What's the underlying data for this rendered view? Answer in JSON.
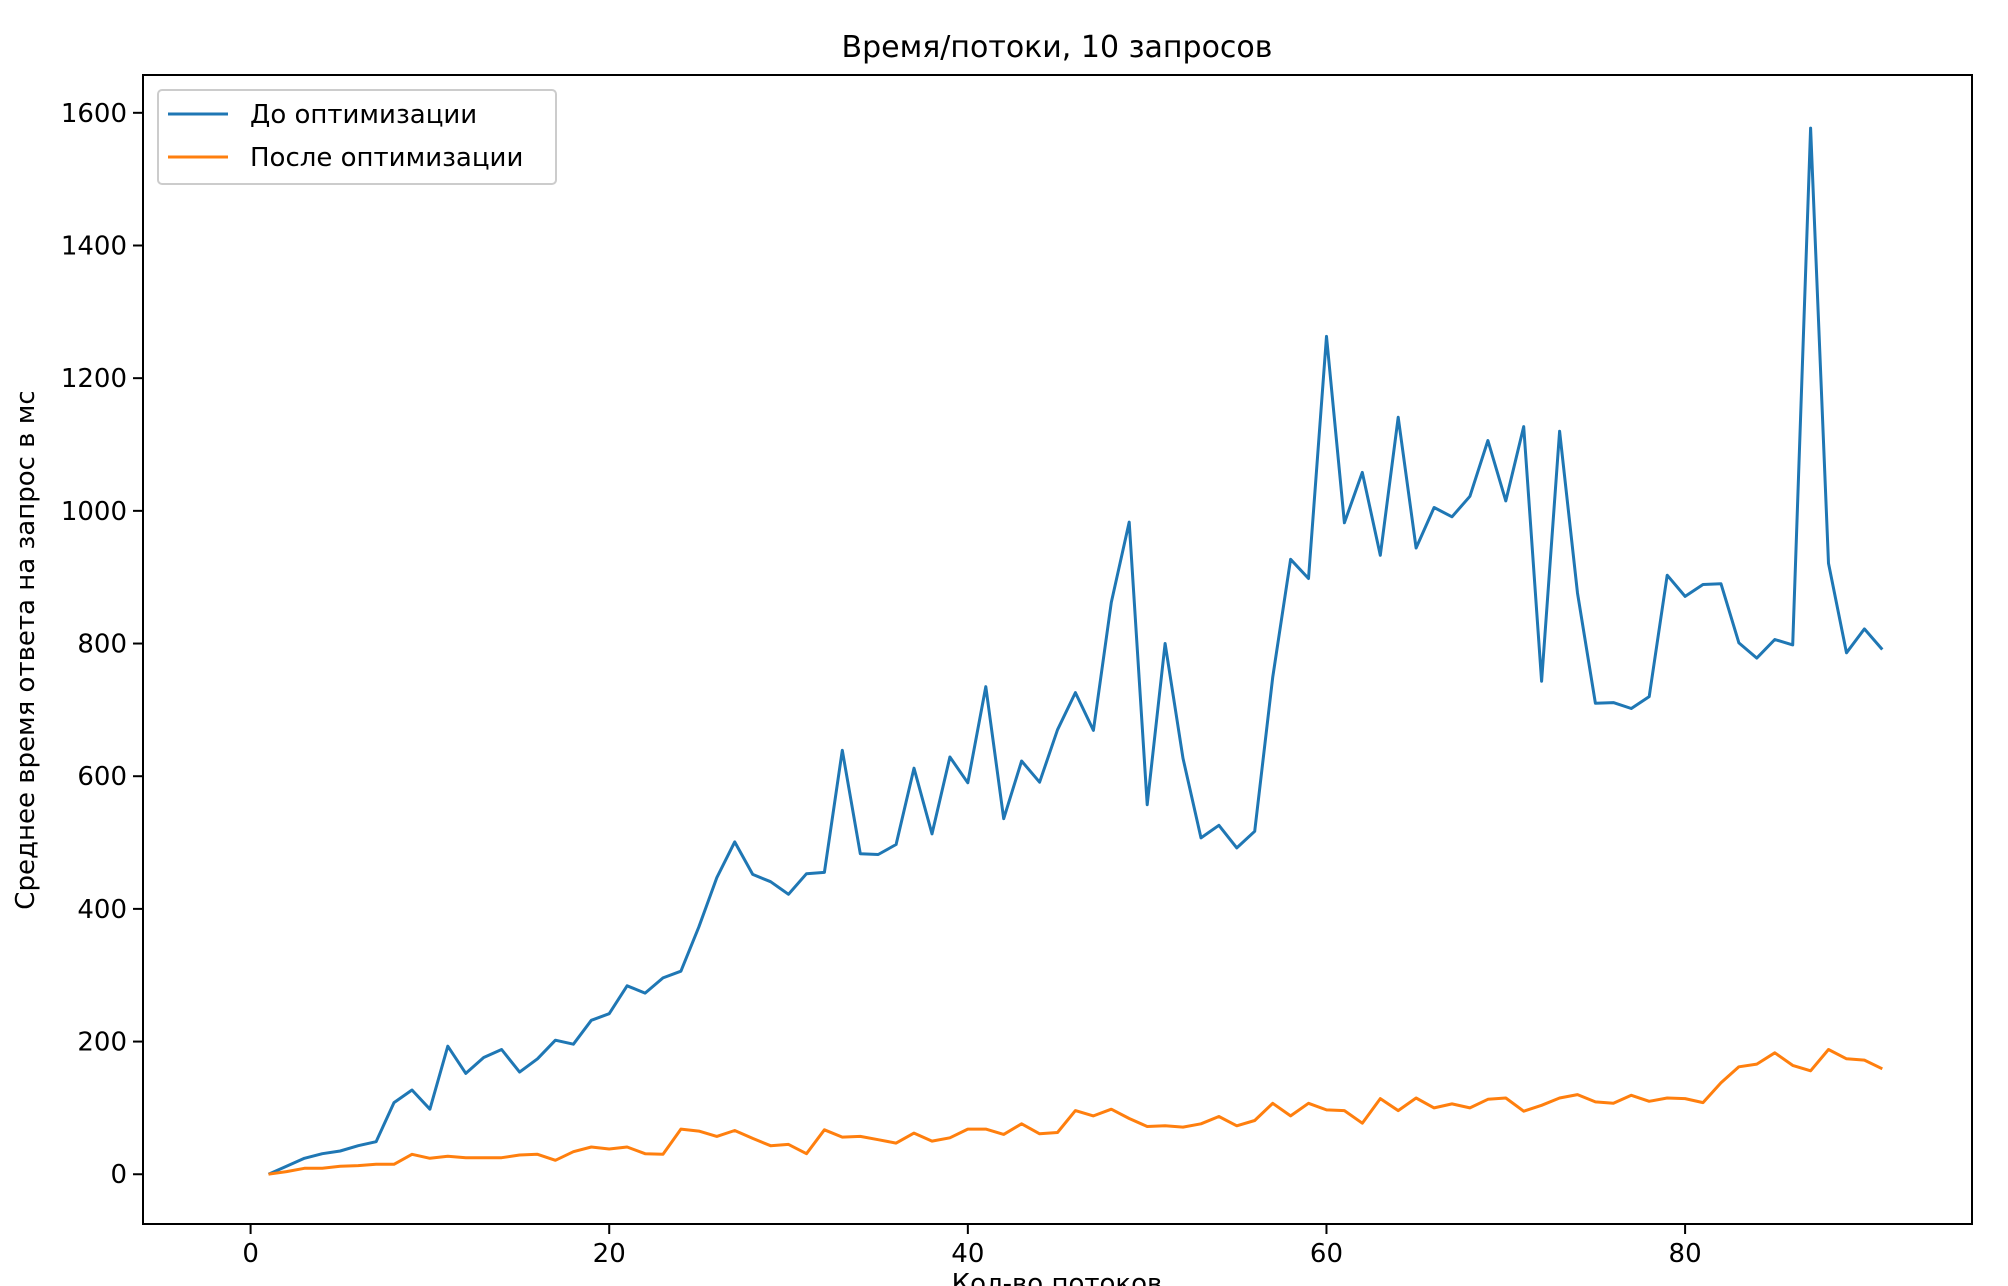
{
  "chart_data": {
    "type": "line",
    "title": "Время/потоки, 10 запросов",
    "xlabel": "Кол-во потоков",
    "ylabel": "Среднее время ответа на запрос в мс",
    "xlim": [
      -6,
      96
    ],
    "ylim": [
      -75,
      1657
    ],
    "xticks": [
      0,
      20,
      40,
      60,
      80
    ],
    "yticks": [
      0,
      200,
      400,
      600,
      800,
      1000,
      1200,
      1400,
      1600
    ],
    "grid": false,
    "legend_position": "top-left",
    "series": [
      {
        "name": "До оптимизации",
        "color": "#1f77b4",
        "x": [
          1,
          2,
          3,
          4,
          5,
          6,
          7,
          8,
          9,
          10,
          11,
          12,
          13,
          14,
          15,
          16,
          17,
          18,
          19,
          20,
          21,
          22,
          23,
          24,
          25,
          26,
          27,
          28,
          29,
          30,
          31,
          32,
          33,
          34,
          35,
          36,
          37,
          38,
          39,
          40,
          41,
          42,
          43,
          44,
          45,
          46,
          47,
          48,
          49,
          50,
          51,
          52,
          53,
          54,
          55,
          56,
          57,
          58,
          59,
          60,
          61,
          62,
          63,
          64,
          65,
          66,
          67,
          68,
          69,
          70,
          71,
          72,
          73,
          74,
          75,
          76,
          77,
          78,
          79,
          80,
          81,
          82,
          83,
          84,
          85,
          86,
          87,
          88,
          89,
          90,
          91
        ],
        "values": [
          0,
          12,
          24,
          31,
          35,
          43,
          49,
          108,
          127,
          98,
          193,
          152,
          176,
          188,
          154,
          174,
          202,
          196,
          232,
          242,
          284,
          273,
          296,
          306,
          373,
          447,
          501,
          452,
          441,
          422,
          453,
          455,
          639,
          483,
          482,
          497,
          612,
          513,
          629,
          590,
          735,
          536,
          623,
          591,
          670,
          726,
          669,
          862,
          983,
          557,
          800,
          627,
          507,
          526,
          492,
          517,
          749,
          927,
          898,
          1263,
          982,
          1058,
          933,
          1141,
          944,
          1005,
          991,
          1022,
          1106,
          1015,
          1127,
          743,
          1120,
          876,
          710,
          711,
          702,
          720,
          903,
          871,
          889,
          890,
          801,
          778,
          806,
          798,
          1577,
          921,
          786,
          822,
          791
        ]
      },
      {
        "name": "После оптимизации",
        "color": "#ff7f0e",
        "x": [
          1,
          2,
          3,
          4,
          5,
          6,
          7,
          8,
          9,
          10,
          11,
          12,
          13,
          14,
          15,
          16,
          17,
          18,
          19,
          20,
          21,
          22,
          23,
          24,
          25,
          26,
          27,
          28,
          29,
          30,
          31,
          32,
          33,
          34,
          35,
          36,
          37,
          38,
          39,
          40,
          41,
          42,
          43,
          44,
          45,
          46,
          47,
          48,
          49,
          50,
          51,
          52,
          53,
          54,
          55,
          56,
          57,
          58,
          59,
          60,
          61,
          62,
          63,
          64,
          65,
          66,
          67,
          68,
          69,
          70,
          71,
          72,
          73,
          74,
          75,
          76,
          77,
          78,
          79,
          80,
          81,
          82,
          83,
          84,
          85,
          86,
          87,
          88,
          89,
          90,
          91
        ],
        "values": [
          0,
          4,
          9,
          9,
          12,
          13,
          15,
          15,
          30,
          24,
          27,
          25,
          25,
          25,
          29,
          30,
          21,
          34,
          41,
          38,
          41,
          31,
          30,
          68,
          65,
          57,
          66,
          54,
          43,
          45,
          31,
          67,
          56,
          57,
          52,
          47,
          62,
          50,
          55,
          68,
          68,
          60,
          76,
          61,
          63,
          96,
          88,
          98,
          84,
          72,
          73,
          71,
          76,
          87,
          73,
          81,
          107,
          88,
          107,
          97,
          96,
          77,
          114,
          96,
          115,
          100,
          106,
          100,
          113,
          115,
          95,
          104,
          115,
          120,
          109,
          107,
          119,
          110,
          115,
          114,
          108,
          138,
          162,
          166,
          183,
          164,
          156,
          188,
          174,
          172,
          159
        ]
      }
    ]
  }
}
